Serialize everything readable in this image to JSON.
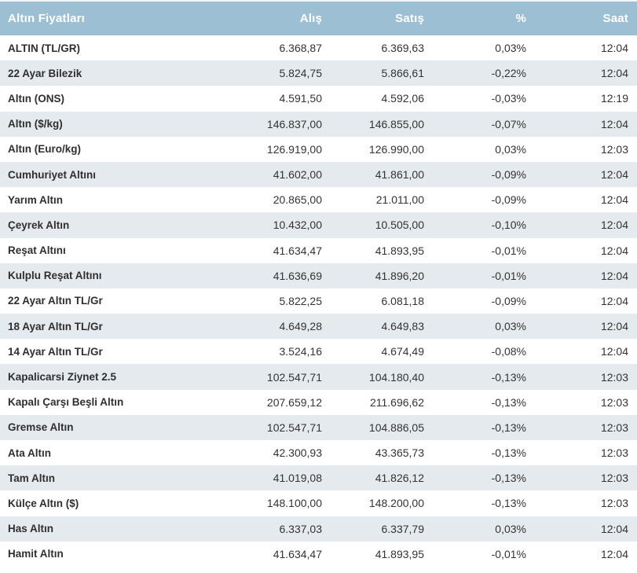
{
  "colors": {
    "header_bg": "#9cbfd3",
    "header_text": "#ffffff",
    "row_alt_bg": "#e4eaed",
    "text": "#333333"
  },
  "chart_data": {
    "type": "table",
    "title": "Altın Fiyatları",
    "columns": [
      "Altın Fiyatları",
      "Alış",
      "Satış",
      "%",
      "Saat"
    ],
    "rows": [
      [
        "ALTIN (TL/GR)",
        "6.368,87",
        "6.369,63",
        "0,03%",
        "12:04"
      ],
      [
        "22 Ayar Bilezik",
        "5.824,75",
        "5.866,61",
        "-0,22%",
        "12:04"
      ],
      [
        "Altın (ONS)",
        "4.591,50",
        "4.592,06",
        "-0,03%",
        "12:19"
      ],
      [
        "Altın ($/kg)",
        "146.837,00",
        "146.855,00",
        "-0,07%",
        "12:04"
      ],
      [
        "Altın (Euro/kg)",
        "126.919,00",
        "126.990,00",
        "0,03%",
        "12:03"
      ],
      [
        "Cumhuriyet Altını",
        "41.602,00",
        "41.861,00",
        "-0,09%",
        "12:04"
      ],
      [
        "Yarım Altın",
        "20.865,00",
        "21.011,00",
        "-0,09%",
        "12:04"
      ],
      [
        "Çeyrek Altın",
        "10.432,00",
        "10.505,00",
        "-0,10%",
        "12:04"
      ],
      [
        "Reşat Altını",
        "41.634,47",
        "41.893,95",
        "-0,01%",
        "12:04"
      ],
      [
        "Kulplu Reşat Altını",
        "41.636,69",
        "41.896,20",
        "-0,01%",
        "12:04"
      ],
      [
        "22 Ayar Altın TL/Gr",
        "5.822,25",
        "6.081,18",
        "-0,09%",
        "12:04"
      ],
      [
        "18 Ayar Altın TL/Gr",
        "4.649,28",
        "4.649,83",
        "0,03%",
        "12:04"
      ],
      [
        "14 Ayar Altın TL/Gr",
        "3.524,16",
        "4.674,49",
        "-0,08%",
        "12:04"
      ],
      [
        "Kapalicarsi Ziynet 2.5",
        "102.547,71",
        "104.180,40",
        "-0,13%",
        "12:03"
      ],
      [
        "Kapalı Çarşı Beşli Altın",
        "207.659,12",
        "211.696,62",
        "-0,13%",
        "12:03"
      ],
      [
        "Gremse Altın",
        "102.547,71",
        "104.886,05",
        "-0,13%",
        "12:03"
      ],
      [
        "Ata Altın",
        "42.300,93",
        "43.365,73",
        "-0,13%",
        "12:03"
      ],
      [
        "Tam Altın",
        "41.019,08",
        "41.826,12",
        "-0,13%",
        "12:03"
      ],
      [
        "Külçe Altın ($)",
        "148.100,00",
        "148.200,00",
        "-0,13%",
        "12:03"
      ],
      [
        "Has Altın",
        "6.337,03",
        "6.337,79",
        "0,03%",
        "12:04"
      ],
      [
        "Hamit Altın",
        "41.634,47",
        "41.893,95",
        "-0,01%",
        "12:04"
      ]
    ]
  }
}
